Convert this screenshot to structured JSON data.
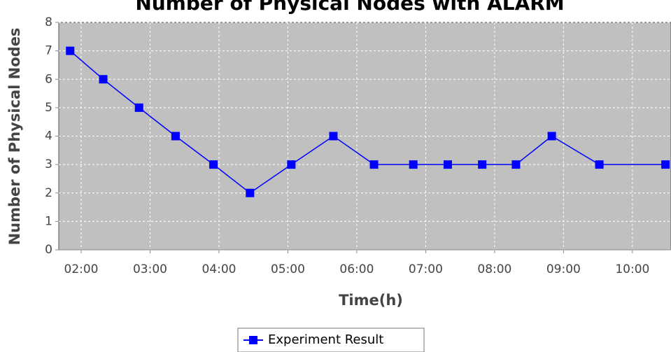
{
  "chart_data": {
    "type": "line",
    "title": "Number of Physical Nodes with ALARM",
    "x_label": "Time(h)",
    "y_label": "Number of Physical Nodes",
    "x": [
      1.84,
      2.32,
      2.84,
      3.37,
      3.92,
      4.45,
      5.05,
      5.66,
      6.25,
      6.82,
      7.32,
      7.82,
      8.31,
      8.83,
      9.52,
      10.48
    ],
    "series": [
      {
        "name": "Experiment Result",
        "color": "#0000ff",
        "values": [
          7,
          6,
          5,
          4,
          3,
          2,
          3,
          4,
          3,
          3,
          3,
          3,
          3,
          4,
          3,
          3
        ]
      }
    ],
    "xlim": [
      1.675,
      10.56
    ],
    "xticks": [
      {
        "value": 2,
        "label": "02:00"
      },
      {
        "value": 3,
        "label": "03:00"
      },
      {
        "value": 4,
        "label": "04:00"
      },
      {
        "value": 5,
        "label": "05:00"
      },
      {
        "value": 6,
        "label": "06:00"
      },
      {
        "value": 7,
        "label": "07:00"
      },
      {
        "value": 8,
        "label": "08:00"
      },
      {
        "value": 9,
        "label": "09:00"
      },
      {
        "value": 10,
        "label": "10:00"
      }
    ],
    "ylim": [
      0,
      8
    ],
    "yticks": [
      0,
      1,
      2,
      3,
      4,
      5,
      6,
      7,
      8
    ],
    "grid": true,
    "legend": "bottom"
  }
}
